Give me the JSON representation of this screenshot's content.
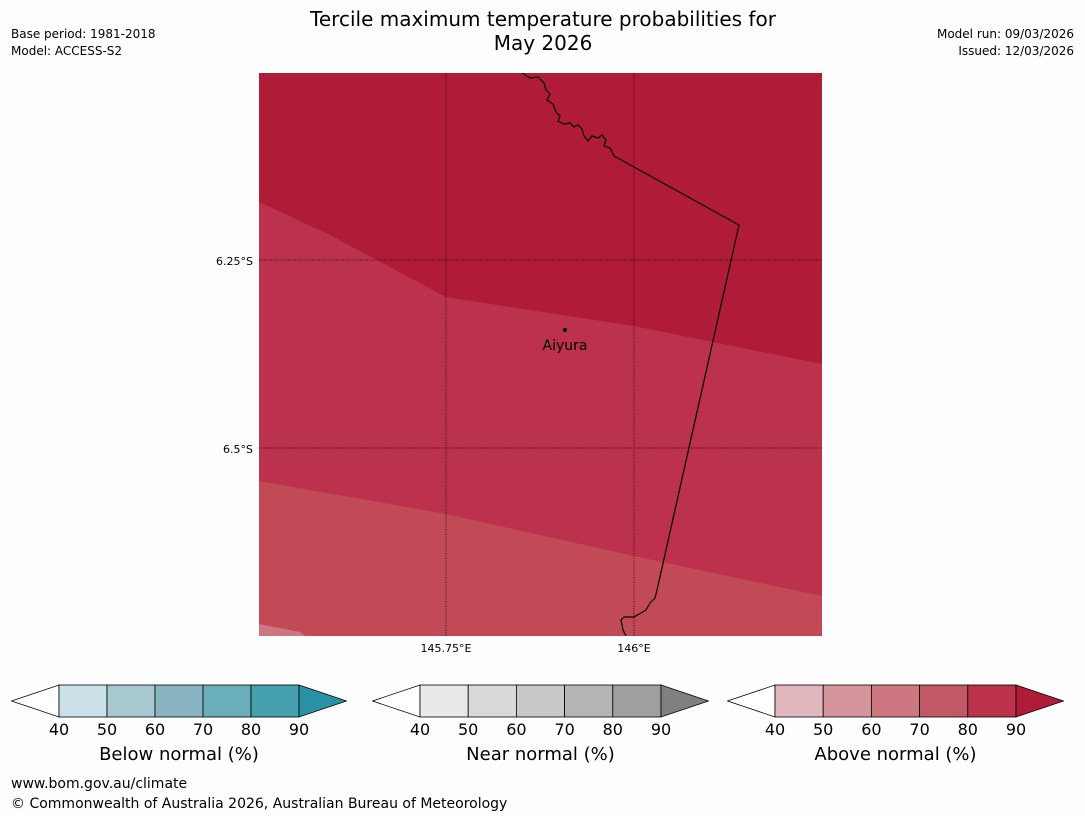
{
  "header": {
    "title_line1": "Tercile maximum temperature probabilities for",
    "title_line2": "May 2026",
    "base_period": "Base period: 1981-2018",
    "model": "Model: ACCESS-S2",
    "model_run": "Model run: 09/03/2026",
    "issued": "Issued: 12/03/2026"
  },
  "map": {
    "lat_labels": [
      "6.25°S",
      "6.5°S"
    ],
    "lon_labels": [
      "145.75°E",
      "146°E"
    ],
    "place_name": "Aiyura",
    "colors": {
      "band_80_90": "#b01b37",
      "band_70_80_dark": "#bc314b",
      "band_70_80": "#c14a56",
      "band_60_70": "#cd7780"
    }
  },
  "legends": [
    {
      "label": "Below normal (%)",
      "ticks": [
        "40",
        "50",
        "60",
        "70",
        "80",
        "90"
      ],
      "colors": [
        "#ffffff",
        "#cae2e7",
        "#a7c8ce",
        "#88b5c1",
        "#6aadbb",
        "#45a0af",
        "#2b92a5"
      ]
    },
    {
      "label": "Near normal (%)",
      "ticks": [
        "40",
        "50",
        "60",
        "70",
        "80",
        "90"
      ],
      "colors": [
        "#ffffff",
        "#e8e8e8",
        "#d9d9d9",
        "#c9c9c9",
        "#b5b5b5",
        "#9f9f9f",
        "#808080"
      ]
    },
    {
      "label": "Above normal (%)",
      "ticks": [
        "40",
        "50",
        "60",
        "70",
        "80",
        "90"
      ],
      "colors": [
        "#ffffff",
        "#e1b7bd",
        "#d6959d",
        "#cd7780",
        "#c35867",
        "#bc324b",
        "#b01b37"
      ]
    }
  ],
  "footer": {
    "url": "www.bom.gov.au/climate",
    "copyright": "© Commonwealth of Australia 2026, Australian Bureau of Meteorology"
  }
}
